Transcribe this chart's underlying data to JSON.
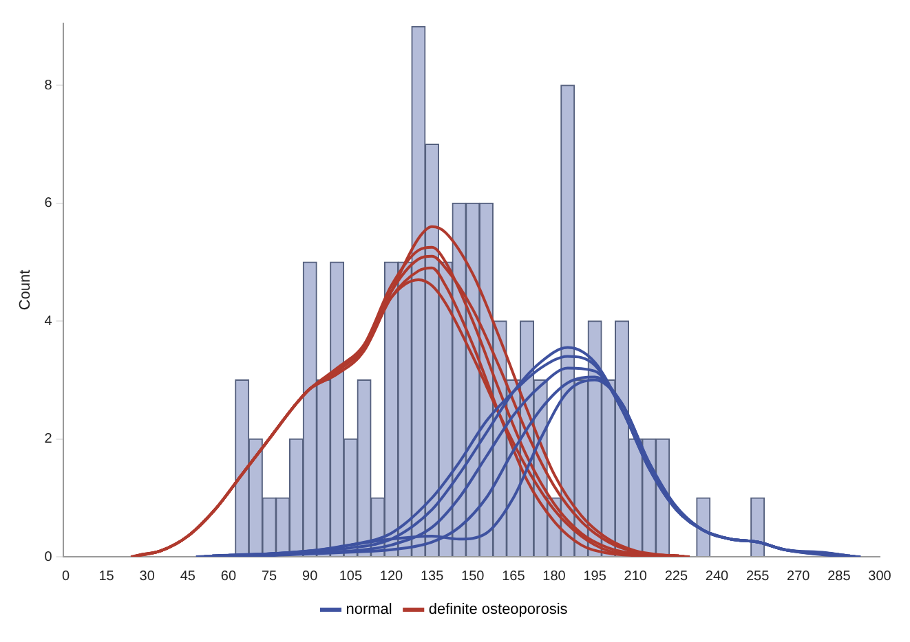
{
  "chart_data": {
    "type": "histogram",
    "ylabel": "Count",
    "bins": [
      62.5,
      67.5,
      72.5,
      77.5,
      82.5,
      87.5,
      92.5,
      97.5,
      102.5,
      107.5,
      112.5,
      117.5,
      122.5,
      127.5,
      132.5,
      137.5,
      142.5,
      147.5,
      152.5,
      157.5,
      162.5,
      167.5,
      172.5,
      177.5,
      182.5,
      187.5,
      192.5,
      197.5,
      202.5,
      207.5,
      212.5,
      217.5,
      222.5,
      227.5,
      232.5,
      237.5,
      242.5,
      247.5,
      252.5,
      257.5
    ],
    "values": [
      3,
      2,
      1,
      1,
      2,
      5,
      3,
      5,
      2,
      3,
      1,
      5,
      5,
      9,
      7,
      5,
      6,
      6,
      6,
      4,
      3,
      4,
      3,
      1,
      8,
      3,
      4,
      3,
      4,
      2,
      2,
      2,
      0,
      0,
      1,
      0,
      0,
      0,
      1
    ],
    "color": "#b4bcd9",
    "series": [
      {
        "type": "line",
        "name": "normal",
        "color": "#3e52a0",
        "x": [
          48,
          60,
          75,
          90,
          105,
          120,
          135,
          145,
          155,
          165,
          175,
          185,
          195,
          205,
          215,
          225,
          235,
          245,
          255,
          265,
          280,
          293
        ],
        "values": [
          0,
          0.02,
          0.05,
          0.1,
          0.15,
          0.3,
          0.8,
          1.4,
          2.1,
          2.8,
          3.3,
          3.55,
          3.3,
          2.5,
          1.5,
          0.8,
          0.45,
          0.3,
          0.25,
          0.12,
          0.03,
          0
        ]
      },
      {
        "type": "line",
        "color": "#3e52a0",
        "x": [
          51,
          62,
          75,
          90,
          105,
          120,
          135,
          145,
          155,
          165,
          175,
          185,
          195,
          205,
          215,
          225,
          235,
          245,
          255,
          265,
          280,
          291
        ],
        "values": [
          0.01,
          0.02,
          0.05,
          0.1,
          0.2,
          0.4,
          1.0,
          1.6,
          2.3,
          2.8,
          3.2,
          3.4,
          3.25,
          2.5,
          1.5,
          0.8,
          0.45,
          0.3,
          0.25,
          0.12,
          0.04,
          0.01
        ]
      },
      {
        "type": "line",
        "color": "#3e52a0",
        "x": [
          54,
          64,
          75,
          90,
          105,
          120,
          135,
          145,
          155,
          165,
          175,
          185,
          195,
          205,
          215,
          225,
          235,
          245,
          255,
          265,
          280,
          289
        ],
        "values": [
          0.02,
          0.03,
          0.05,
          0.08,
          0.1,
          0.2,
          0.5,
          1.0,
          1.7,
          2.4,
          2.9,
          3.2,
          3.15,
          2.5,
          1.5,
          0.8,
          0.45,
          0.3,
          0.25,
          0.12,
          0.05,
          0.02
        ]
      },
      {
        "type": "line",
        "color": "#3e52a0",
        "x": [
          57,
          66,
          75,
          90,
          105,
          120,
          135,
          145,
          155,
          165,
          175,
          185,
          195,
          205,
          215,
          225,
          235,
          245,
          255,
          265,
          280,
          287
        ],
        "values": [
          0,
          0.01,
          0.02,
          0.05,
          0.08,
          0.12,
          0.25,
          0.5,
          1.0,
          1.8,
          2.5,
          2.95,
          3.05,
          2.6,
          1.6,
          0.85,
          0.45,
          0.3,
          0.25,
          0.12,
          0.06,
          0.03
        ]
      },
      {
        "type": "line",
        "color": "#3e52a0",
        "x": [
          60,
          68,
          75,
          90,
          105,
          120,
          135,
          145,
          155,
          165,
          175,
          185,
          195,
          205,
          215,
          225,
          235,
          245,
          255,
          265,
          280,
          285
        ],
        "values": [
          0.03,
          0.04,
          0.05,
          0.1,
          0.2,
          0.3,
          0.35,
          0.3,
          0.4,
          1.0,
          2.0,
          2.8,
          3.0,
          2.6,
          1.6,
          0.85,
          0.45,
          0.3,
          0.25,
          0.12,
          0.07,
          0.04
        ]
      },
      {
        "type": "line",
        "name": "definite osteoporosis",
        "color": "#b03a2e",
        "x": [
          24,
          35,
          45,
          55,
          65,
          75,
          85,
          90,
          100,
          110,
          120,
          130,
          135,
          140,
          150,
          160,
          170,
          180,
          190,
          200,
          210,
          220,
          230
        ],
        "values": [
          0,
          0.1,
          0.35,
          0.8,
          1.4,
          2.0,
          2.6,
          2.85,
          3.2,
          3.6,
          4.5,
          5.4,
          5.6,
          5.5,
          4.8,
          3.7,
          2.5,
          1.4,
          0.7,
          0.3,
          0.1,
          0.03,
          0
        ]
      },
      {
        "type": "line",
        "color": "#b03a2e",
        "x": [
          25,
          35,
          45,
          55,
          65,
          75,
          85,
          90,
          100,
          110,
          120,
          130,
          135,
          140,
          150,
          160,
          170,
          180,
          190,
          200,
          210,
          220,
          228
        ],
        "values": [
          0.01,
          0.1,
          0.35,
          0.8,
          1.4,
          2.0,
          2.6,
          2.85,
          3.15,
          3.6,
          4.6,
          5.2,
          5.25,
          5.0,
          4.0,
          2.8,
          1.7,
          0.9,
          0.4,
          0.15,
          0.05,
          0.02,
          0.01
        ]
      },
      {
        "type": "line",
        "color": "#b03a2e",
        "x": [
          26,
          35,
          45,
          55,
          65,
          75,
          85,
          90,
          100,
          110,
          120,
          130,
          135,
          140,
          150,
          160,
          170,
          180,
          190,
          200,
          210,
          220,
          226
        ],
        "values": [
          0.02,
          0.1,
          0.35,
          0.8,
          1.4,
          2.0,
          2.6,
          2.85,
          3.1,
          3.5,
          4.5,
          5.05,
          5.1,
          4.9,
          4.2,
          3.2,
          2.1,
          1.2,
          0.6,
          0.25,
          0.08,
          0.03,
          0.02
        ]
      },
      {
        "type": "line",
        "color": "#b03a2e",
        "x": [
          27,
          35,
          45,
          55,
          65,
          75,
          85,
          90,
          100,
          110,
          120,
          130,
          135,
          140,
          150,
          160,
          170,
          180,
          190,
          200,
          210,
          218
        ],
        "values": [
          0.03,
          0.1,
          0.35,
          0.8,
          1.4,
          2.0,
          2.6,
          2.85,
          3.1,
          3.5,
          4.4,
          4.85,
          4.9,
          4.6,
          3.6,
          2.4,
          1.3,
          0.6,
          0.2,
          0.06,
          0.02,
          0.01
        ]
      },
      {
        "type": "line",
        "color": "#b03a2e",
        "x": [
          28,
          35,
          45,
          55,
          65,
          75,
          85,
          90,
          100,
          110,
          120,
          130,
          135,
          140,
          150,
          160,
          170,
          180,
          190,
          200,
          210,
          222
        ],
        "values": [
          0.04,
          0.1,
          0.35,
          0.8,
          1.4,
          2.0,
          2.6,
          2.85,
          3.15,
          3.55,
          4.4,
          4.7,
          4.6,
          4.3,
          3.4,
          2.4,
          1.5,
          0.8,
          0.35,
          0.1,
          0.04,
          0.02
        ]
      }
    ],
    "xlim": [
      -1,
      300
    ],
    "xticks": [
      0,
      15,
      30,
      45,
      60,
      75,
      90,
      105,
      120,
      135,
      150,
      165,
      180,
      195,
      210,
      225,
      240,
      255,
      270,
      285,
      300
    ],
    "ylim": [
      0,
      9.05
    ],
    "yticks": [
      0,
      2,
      4,
      6,
      8
    ],
    "grid": false,
    "legend": "bottom",
    "marker": "none"
  }
}
